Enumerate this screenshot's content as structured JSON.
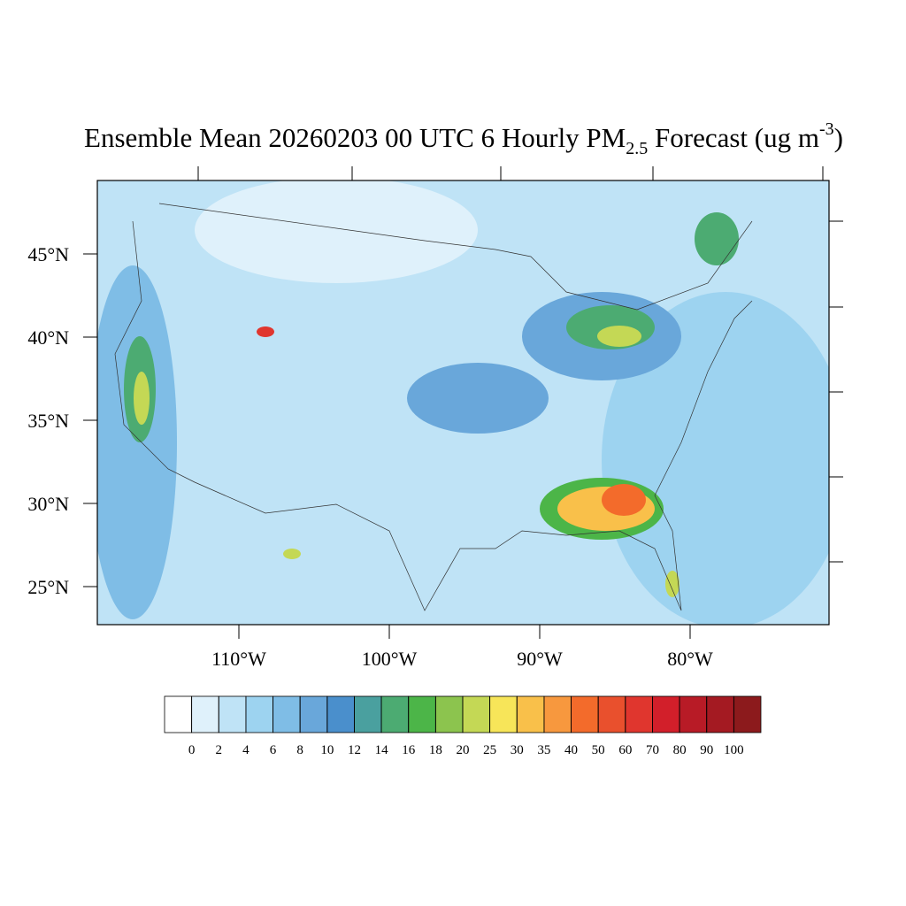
{
  "chart_data": {
    "type": "map",
    "title": {
      "main": "Ensemble Mean 20260203 00 UTC 6 Hourly PM",
      "sub": "2.5",
      "rest": " Forecast (ug m",
      "sup": "-3",
      "end": ")"
    },
    "lat_ticks": [
      {
        "value": 45,
        "label": "45°N"
      },
      {
        "value": 40,
        "label": "40°N"
      },
      {
        "value": 35,
        "label": "35°N"
      },
      {
        "value": 30,
        "label": "30°N"
      },
      {
        "value": 25,
        "label": "25°N"
      }
    ],
    "lon_ticks": [
      {
        "value": -110,
        "label": "110°W"
      },
      {
        "value": -100,
        "label": "100°W"
      },
      {
        "value": -90,
        "label": "90°W"
      },
      {
        "value": -80,
        "label": "80°W"
      }
    ],
    "levels": [
      0,
      2,
      4,
      6,
      8,
      10,
      12,
      14,
      16,
      18,
      20,
      25,
      30,
      35,
      40,
      50,
      60,
      70,
      80,
      90,
      100
    ],
    "colors": [
      "#ffffff",
      "#dff1fb",
      "#bfe3f6",
      "#9dd3f0",
      "#7fbde6",
      "#69a7da",
      "#4a8fcc",
      "#4aa09f",
      "#4cab72",
      "#4cb548",
      "#8cc44e",
      "#c4d855",
      "#f7e559",
      "#f9c04a",
      "#f7983e",
      "#f36b2b",
      "#e9502d",
      "#e0362e",
      "#d21f2a",
      "#b81b26",
      "#a41a22",
      "#8c1a1c"
    ]
  }
}
